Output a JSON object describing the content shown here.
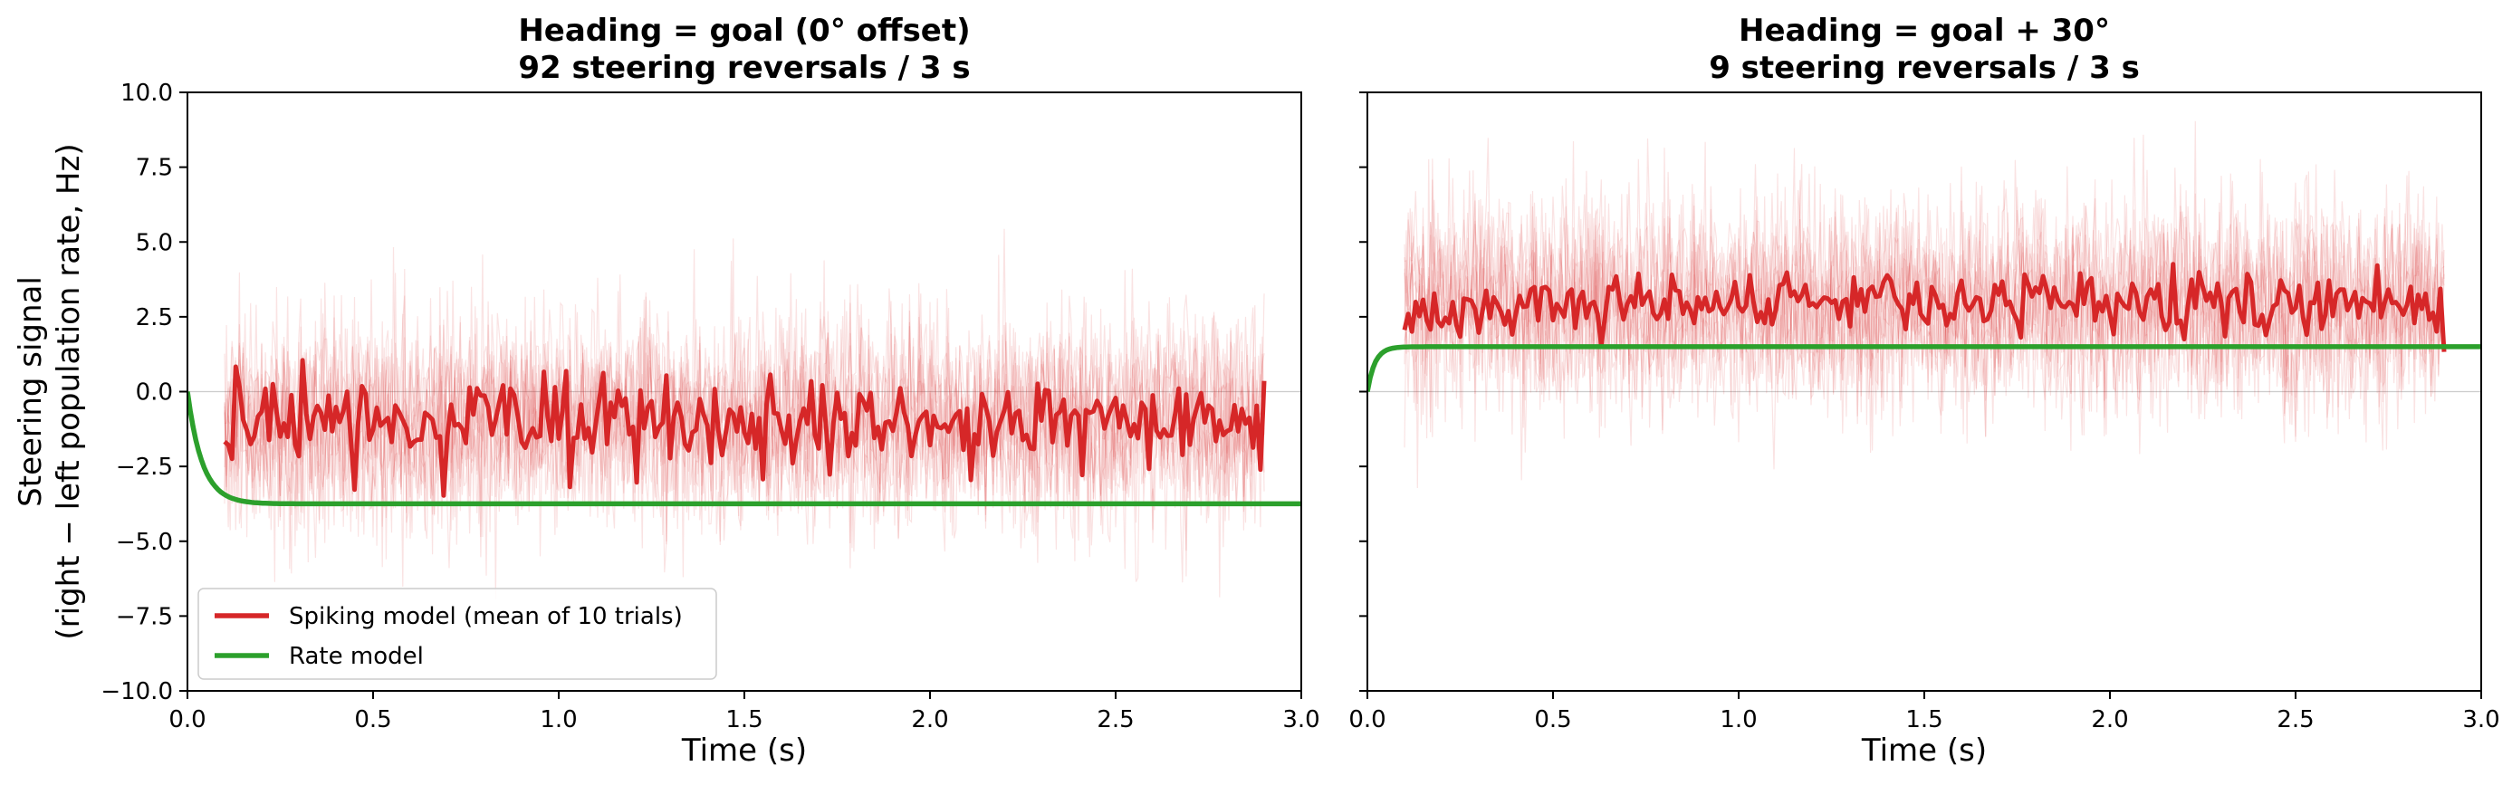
{
  "chart_data": [
    {
      "type": "line",
      "title": "Heading = goal (0° offset)",
      "subtitle": "92 steering reversals / 3 s",
      "xlabel": "Time (s)",
      "ylabel_line1": "Steering signal",
      "ylabel_line2": "(right − left population rate, Hz)",
      "xlim": [
        0.0,
        3.0
      ],
      "ylim": [
        -10.0,
        10.0
      ],
      "xticks": [
        "0.0",
        "0.5",
        "1.0",
        "1.5",
        "2.0",
        "2.5",
        "3.0"
      ],
      "yticks": [
        "−10.0",
        "−7.5",
        "−5.0",
        "−2.5",
        "0.0",
        "2.5",
        "5.0",
        "7.5",
        "10.0"
      ],
      "zero_line": true,
      "legend": {
        "placement": "lower-left",
        "items": [
          "Spiking model (mean of 10 trials)",
          "Rate model"
        ]
      },
      "series": [
        {
          "name": "Spiking model (mean of 10 trials)",
          "color": "#d62728",
          "x_start": 0.1,
          "x_end": 2.9,
          "mean_level": -1.0,
          "fluctuation": 0.7,
          "trial_spread": 1.7
        },
        {
          "name": "Rate model",
          "color": "#2ca02c",
          "x_start": 0.0,
          "x_end": 3.0,
          "initial": 0.0,
          "steady_state": -3.75,
          "tau_s": 0.04
        }
      ]
    },
    {
      "type": "line",
      "title": "Heading = goal + 30°",
      "subtitle": "9 steering reversals / 3 s",
      "xlabel": "Time (s)",
      "xlim": [
        0.0,
        3.0
      ],
      "ylim": [
        -10.0,
        10.0
      ],
      "xticks": [
        "0.0",
        "0.5",
        "1.0",
        "1.5",
        "2.0",
        "2.5",
        "3.0"
      ],
      "zero_line": true,
      "series": [
        {
          "name": "Spiking model (mean of 10 trials)",
          "color": "#d62728",
          "x_start": 0.1,
          "x_end": 2.9,
          "mean_level": 2.9,
          "fluctuation": 0.5,
          "trial_spread": 1.7
        },
        {
          "name": "Rate model",
          "color": "#2ca02c",
          "x_start": 0.0,
          "x_end": 3.0,
          "initial": 0.0,
          "steady_state": 1.5,
          "tau_s": 0.02
        }
      ]
    }
  ]
}
